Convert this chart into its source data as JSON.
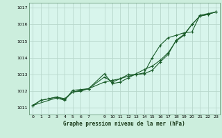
{
  "title": "Graphe pression niveau de la mer (hPa)",
  "bg_color": "#cceedd",
  "plot_bg_color": "#d8f5ec",
  "grid_color": "#b8d8cc",
  "line_color": "#1a5c2a",
  "xlim": [
    -0.5,
    23.5
  ],
  "ylim": [
    1010.6,
    1017.3
  ],
  "xticks": [
    0,
    1,
    2,
    3,
    4,
    5,
    6,
    7,
    9,
    10,
    11,
    12,
    13,
    14,
    15,
    16,
    17,
    18,
    19,
    20,
    21,
    22,
    23
  ],
  "yticks": [
    1011,
    1012,
    1013,
    1014,
    1015,
    1016,
    1017
  ],
  "line1_x": [
    0,
    1,
    2,
    3,
    4,
    5,
    6,
    7,
    9,
    10,
    11,
    12,
    13,
    14,
    15,
    16,
    17,
    18,
    19,
    20,
    21,
    22,
    23
  ],
  "line1_y": [
    1011.15,
    1011.45,
    1011.55,
    1011.65,
    1011.5,
    1011.95,
    1012.05,
    1012.15,
    1012.85,
    1012.55,
    1012.75,
    1013.0,
    1013.0,
    1013.05,
    1013.25,
    1013.75,
    1014.2,
    1015.05,
    1015.4,
    1016.0,
    1016.5,
    1016.6,
    1016.75
  ],
  "line2_x": [
    0,
    1,
    2,
    3,
    4,
    5,
    6,
    7,
    9,
    10,
    11,
    12,
    13,
    14,
    15,
    16,
    17,
    18,
    19,
    20,
    21,
    22,
    23
  ],
  "line2_y": [
    1011.15,
    1011.45,
    1011.55,
    1011.65,
    1011.55,
    1011.95,
    1012.0,
    1012.15,
    1012.55,
    1012.65,
    1012.75,
    1012.9,
    1013.0,
    1013.1,
    1014.0,
    1014.75,
    1015.2,
    1015.35,
    1015.5,
    1015.55,
    1016.55,
    1016.65,
    1016.75
  ],
  "line3_x": [
    0,
    3,
    4,
    5,
    6,
    7,
    9,
    10,
    11,
    12,
    13,
    14,
    15,
    16,
    17,
    18,
    19,
    20,
    21,
    22,
    23
  ],
  "line3_y": [
    1011.15,
    1011.6,
    1011.45,
    1012.05,
    1012.1,
    1012.15,
    1013.05,
    1012.45,
    1012.55,
    1012.8,
    1013.05,
    1013.3,
    1013.5,
    1013.85,
    1014.3,
    1015.0,
    1015.35,
    1016.0,
    1016.5,
    1016.6,
    1016.75
  ]
}
